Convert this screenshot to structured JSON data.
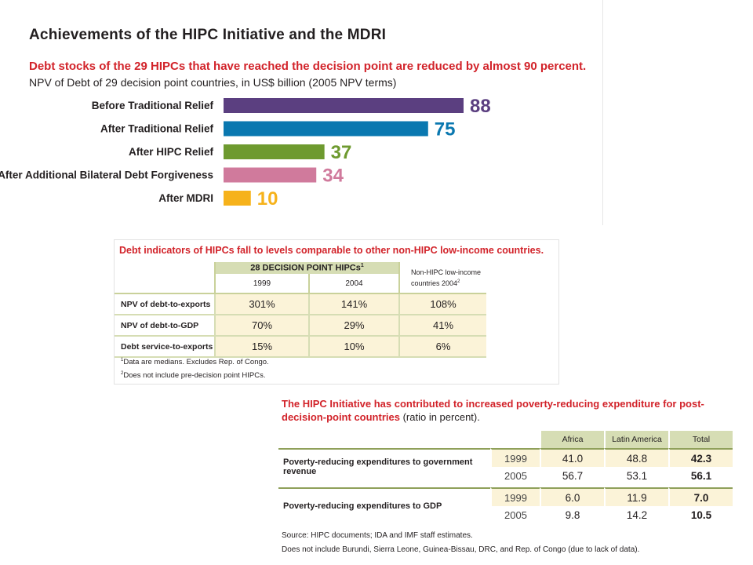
{
  "panel1": {
    "title": "Achievements of the HIPC Initiative and the MDRI",
    "subtitle": "Debt stocks of the 29 HIPCs that have reached the decision point are reduced by almost 90 percent.",
    "caption": "NPV of Debt of 29 decision point countries, in US$ billion (2005 NPV terms)"
  },
  "chart_data": {
    "type": "bar",
    "orientation": "horizontal",
    "categories": [
      "Before Traditional Relief",
      "After Traditional Relief",
      "After HIPC Relief",
      "After Additional Bilateral Debt Forgiveness",
      "After MDRI"
    ],
    "values": [
      88,
      75,
      37,
      34,
      10
    ],
    "colors": [
      "#5b3f80",
      "#0a78b0",
      "#6e9a2f",
      "#d07a9c",
      "#f6b21b"
    ],
    "title": "",
    "xlabel": "",
    "ylabel": "",
    "xlim": [
      0,
      88
    ],
    "grid": false,
    "legend": "none"
  },
  "panel2": {
    "title": "Debt indicators of HIPCs fall to levels comparable to other non-HIPC low-income countries.",
    "group_header": "28 DECISION POINT HIPCs",
    "group_sup": "1",
    "col_1999": "1999",
    "col_2004": "2004",
    "col_nonhipc_1": "Non-HIPC low-income",
    "col_nonhipc_2": "countries 2004",
    "col_nonhipc_sup": "2",
    "rows": [
      {
        "label": "NPV of debt-to-exports",
        "v1999": "301%",
        "v2004": "141%",
        "nonhipc": "108%"
      },
      {
        "label": "NPV of debt-to-GDP",
        "v1999": "70%",
        "v2004": "29%",
        "nonhipc": "41%"
      },
      {
        "label": "Debt service-to-exports",
        "v1999": "15%",
        "v2004": "10%",
        "nonhipc": "6%"
      }
    ],
    "footnote1_sup": "1",
    "footnote1": "Data are medians. Excludes Rep. of Congo.",
    "footnote2_sup": "2",
    "footnote2": "Does not include pre-decision point HIPCs."
  },
  "panel3": {
    "title": "The HIPC Initiative has contributed to increased poverty-reducing expenditure for post-decision-point countries",
    "title_note": "(ratio in percent).",
    "col_africa": "Africa",
    "col_latam": "Latin America",
    "col_total": "Total",
    "groups": [
      {
        "label": "Poverty-reducing expenditures to government revenue",
        "rows": [
          {
            "year": "1999",
            "africa": "41.0",
            "latam": "48.8",
            "total": "42.3"
          },
          {
            "year": "2005",
            "africa": "56.7",
            "latam": "53.1",
            "total": "56.1"
          }
        ]
      },
      {
        "label": "Poverty-reducing expenditures to GDP",
        "rows": [
          {
            "year": "1999",
            "africa": "6.0",
            "latam": "11.9",
            "total": "7.0"
          },
          {
            "year": "2005",
            "africa": "9.8",
            "latam": "14.2",
            "total": "10.5"
          }
        ]
      }
    ],
    "source": "Source: HIPC documents; IDA and IMF staff estimates.",
    "note": "Does not include Burundi, Sierra Leone, Guinea-Bissau, DRC, and Rep. of Congo (due to lack of data)."
  }
}
